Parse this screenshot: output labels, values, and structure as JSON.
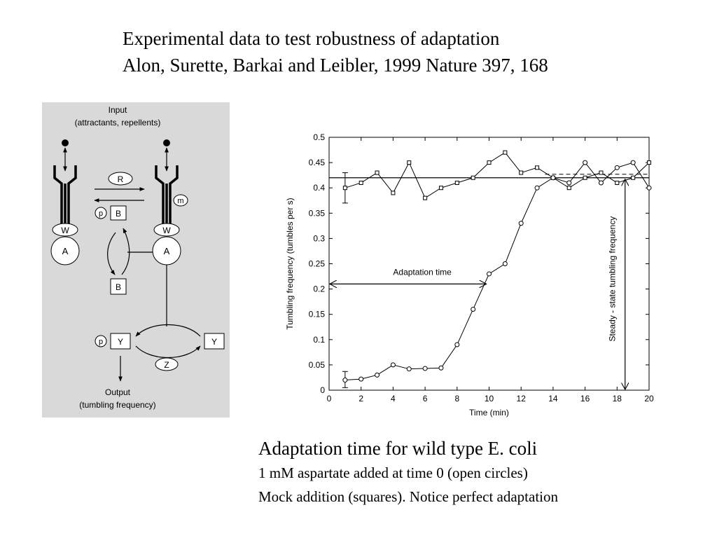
{
  "title": {
    "line1": "Experimental data to test robustness of adaptation",
    "line2": "Alon, Surette, Barkai and Leibler, 1999 Nature 397, 168"
  },
  "diagram": {
    "input_label": "Input",
    "input_sublabel": "(attractants, repellents)",
    "output_label": "Output",
    "output_sublabel": "(tumbling frequency)",
    "node_R": "R",
    "node_m": "m",
    "node_W_left": "W",
    "node_W_right": "W",
    "node_A_left": "A",
    "node_A_right": "A",
    "node_B_top": "B",
    "node_B_bottom": "B",
    "node_p_B": "p",
    "node_p_Y": "p",
    "node_Y_left": "Y",
    "node_Y_right": "Y",
    "node_Z": "Z",
    "background": "#d9d9d9"
  },
  "chart_data": {
    "type": "line",
    "xlabel": "Time (min)",
    "ylabel": "Tumbling frequency (tumbles per s)",
    "xlim": [
      0,
      20
    ],
    "ylim": [
      0,
      0.5
    ],
    "xticks": [
      "0",
      "2",
      "4",
      "6",
      "8",
      "10",
      "12",
      "14",
      "16",
      "18",
      "20"
    ],
    "yticks": [
      "0",
      "0.05",
      "0.1",
      "0.15",
      "0.2",
      "0.25",
      "0.3",
      "0.35",
      "0.4",
      "0.45",
      "0.5"
    ],
    "series": [
      {
        "marker": "square",
        "x": [
          1,
          2,
          3,
          4,
          5,
          6,
          7,
          8,
          9,
          10,
          11,
          12,
          13,
          14,
          15,
          16,
          17,
          18,
          19,
          20
        ],
        "y": [
          0.4,
          0.41,
          0.43,
          0.39,
          0.45,
          0.38,
          0.4,
          0.41,
          0.42,
          0.45,
          0.47,
          0.43,
          0.44,
          0.42,
          0.4,
          0.42,
          0.43,
          0.41,
          0.42,
          0.45
        ]
      },
      {
        "marker": "circle",
        "x": [
          1,
          2,
          3,
          4,
          5,
          6,
          7,
          8,
          9,
          10,
          11,
          12,
          13,
          14,
          15,
          16,
          17,
          18,
          19,
          20
        ],
        "y": [
          0.02,
          0.022,
          0.03,
          0.05,
          0.042,
          0.043,
          0.044,
          0.09,
          0.16,
          0.23,
          0.25,
          0.33,
          0.4,
          0.42,
          0.41,
          0.45,
          0.41,
          0.44,
          0.45,
          0.4
        ]
      }
    ],
    "steady_state_line": 0.42,
    "error_bars": [
      {
        "x": 1,
        "low": 0.37,
        "high": 0.43
      },
      {
        "x": 1,
        "low": 0.005,
        "high": 0.037
      }
    ],
    "annotations": {
      "adaptation_time": "Adaptation time",
      "steady_state": "Steady - state tumbling frequency"
    },
    "adaptation_arrow": {
      "x_start": 0,
      "x_end": 10,
      "y": 0.21
    },
    "steady_state_arrow": {
      "x": 18.5,
      "y_start": 0,
      "y_end": 0.42
    },
    "dashed_segment": {
      "x_start": 13.5,
      "x_end": 20,
      "y": 0.427
    }
  },
  "caption": {
    "line1": "Adaptation time for wild type E. coli",
    "line2": "1 mM aspartate added at time 0 (open circles)",
    "line3": "Mock addition (squares).  Notice perfect adaptation"
  }
}
